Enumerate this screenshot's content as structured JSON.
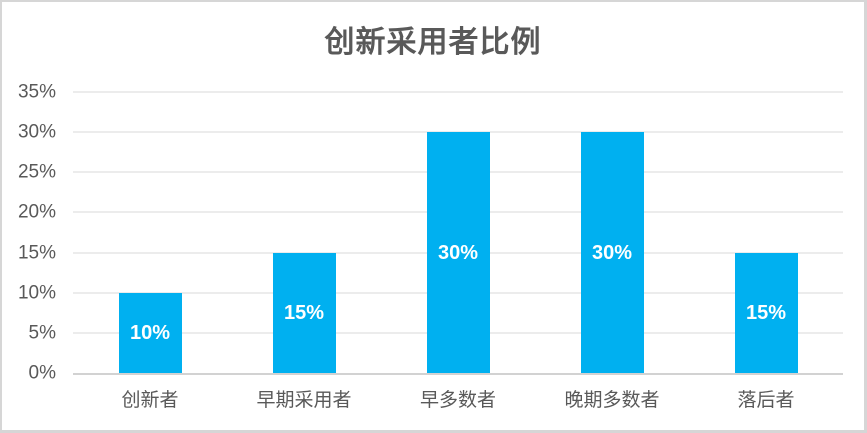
{
  "chart_data": {
    "type": "bar",
    "title": "创新采用者比例",
    "categories": [
      "创新者",
      "早期采用者",
      "早多数者",
      "晚期多数者",
      "落后者"
    ],
    "values": [
      10,
      15,
      30,
      30,
      15
    ],
    "data_labels": [
      "10%",
      "15%",
      "30%",
      "30%",
      "15%"
    ],
    "xlabel": "",
    "ylabel": "",
    "ylim": [
      0,
      35
    ],
    "yticks": [
      0,
      5,
      10,
      15,
      20,
      25,
      30,
      35
    ],
    "ytick_labels": [
      "0%",
      "5%",
      "10%",
      "15%",
      "20%",
      "25%",
      "30%",
      "35%"
    ],
    "grid": true,
    "legend": "none",
    "colors": {
      "bar": "#00B0F0",
      "data_label": "#ffffff",
      "title": "#595959",
      "axis_text": "#595959",
      "gridline": "#d9d9d9",
      "axis_line": "#d2d2d2",
      "frame_border": "#d6d6d6",
      "background": "#ffffff"
    }
  }
}
